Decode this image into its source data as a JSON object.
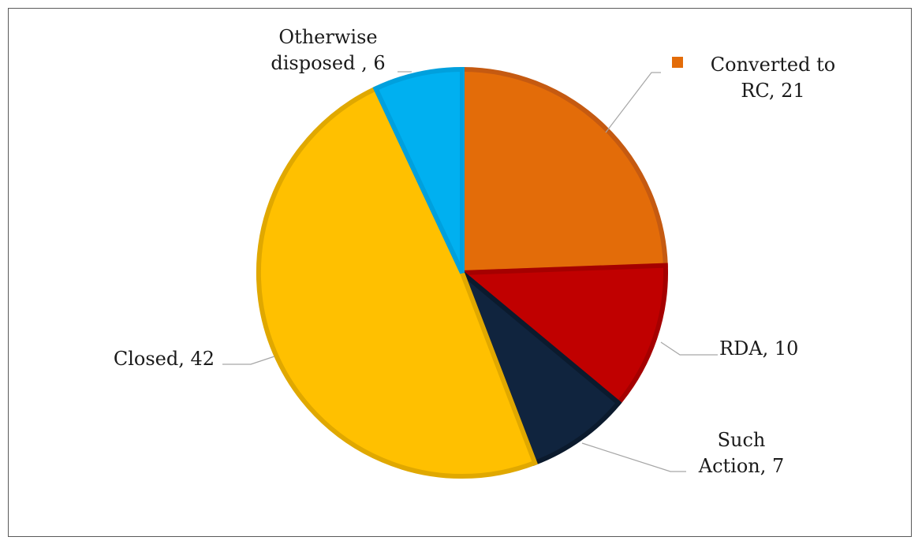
{
  "chart_data": {
    "type": "pie",
    "categories": [
      "Converted to RC",
      "RDA",
      "Such Action",
      "Closed",
      "Otherwise disposed"
    ],
    "values": [
      21,
      10,
      7,
      42,
      6
    ],
    "colors": [
      "#E36C09",
      "#C00000",
      "#10243E",
      "#FFC000",
      "#00B0F0"
    ],
    "border_colors": [
      "#C55A11",
      "#A50000",
      "#0B1A2D",
      "#E0A800",
      "#00A0DD"
    ],
    "labels": [
      {
        "lines": [
          "Converted to",
          "RC, 21"
        ],
        "legend_key": true
      },
      {
        "lines": [
          "RDA, 10"
        ]
      },
      {
        "lines": [
          "Such",
          "Action, 7"
        ]
      },
      {
        "lines": [
          "Closed, 42"
        ]
      },
      {
        "lines": [
          "Otherwise",
          "disposed , 6"
        ]
      }
    ],
    "start_angle_deg": 0,
    "direction": "clockwise",
    "legend": "none",
    "grid": false
  }
}
